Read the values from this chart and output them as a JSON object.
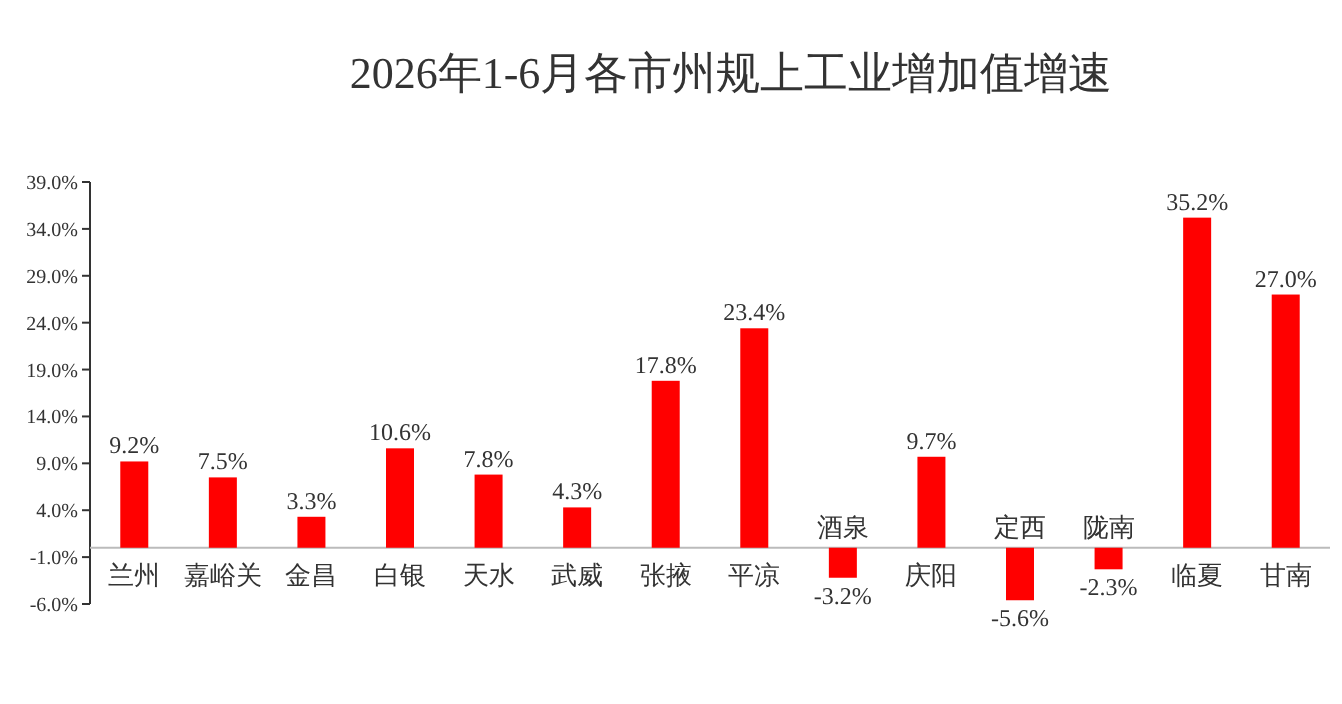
{
  "chart_data": {
    "type": "bar",
    "title": "2026年1-6月各市州规上工业增加值增速",
    "categories": [
      "兰州",
      "嘉峪关",
      "金昌",
      "白银",
      "天水",
      "武威",
      "张掖",
      "平凉",
      "酒泉",
      "庆阳",
      "定西",
      "陇南",
      "临夏",
      "甘南"
    ],
    "values": [
      9.2,
      7.5,
      3.3,
      10.6,
      7.8,
      4.3,
      17.8,
      23.4,
      -3.2,
      9.7,
      -5.6,
      -2.3,
      35.2,
      27.0
    ],
    "value_labels": [
      "9.2%",
      "7.5%",
      "3.3%",
      "10.6%",
      "7.8%",
      "4.3%",
      "17.8%",
      "23.4%",
      "-3.2%",
      "9.7%",
      "-5.6%",
      "-2.3%",
      "35.2%",
      "27.0%"
    ],
    "color": "#ff0000",
    "ylim": [
      -6,
      39
    ],
    "yticks": [
      {
        "value": -6,
        "label": "-6.0%"
      },
      {
        "value": -1,
        "label": "-1.0%"
      },
      {
        "value": 4,
        "label": "4.0%"
      },
      {
        "value": 9,
        "label": "9.0%"
      },
      {
        "value": 14,
        "label": "14.0%"
      },
      {
        "value": 19,
        "label": "19.0%"
      },
      {
        "value": 24,
        "label": "24.0%"
      },
      {
        "value": 29,
        "label": "29.0%"
      },
      {
        "value": 34,
        "label": "34.0%"
      },
      {
        "value": 39,
        "label": "39.0%"
      }
    ],
    "grid": false
  }
}
